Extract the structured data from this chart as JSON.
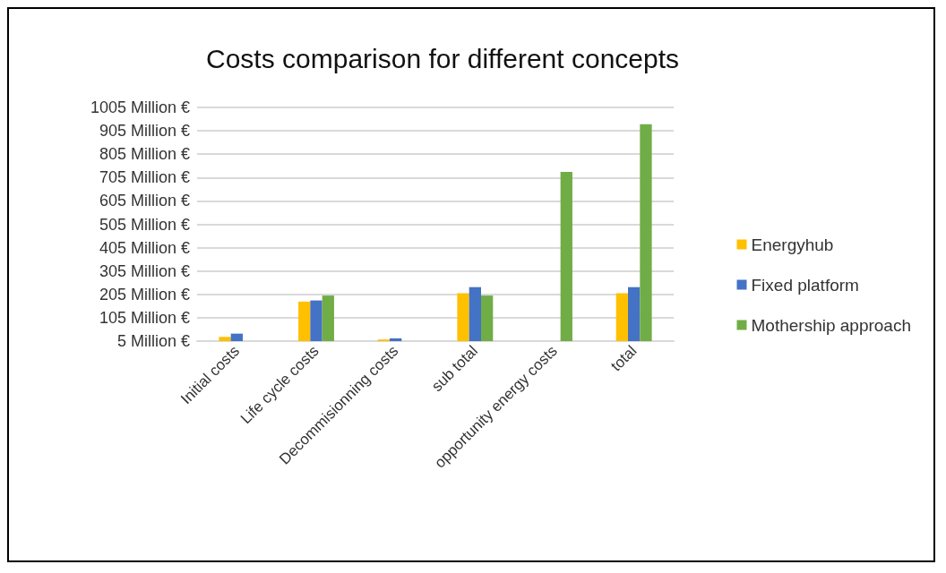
{
  "chart_data": {
    "type": "bar",
    "title": "Costs comparison for different concepts",
    "categories": [
      "Initial costs",
      "Life cycle costs",
      "Decommisionning costs",
      "sub total",
      "opportunity energy costs",
      "total"
    ],
    "series": [
      {
        "name": "Energyhub",
        "color": "#ffc000",
        "values": [
          23,
          174,
          12,
          210,
          null,
          210
        ]
      },
      {
        "name": "Fixed platform",
        "color": "#4472c4",
        "values": [
          37,
          179,
          17,
          236,
          null,
          236
        ]
      },
      {
        "name": "Mothership approach",
        "color": "#70ad47",
        "values": [
          null,
          200,
          null,
          200,
          729,
          933
        ]
      }
    ],
    "ylim": [
      5,
      1005
    ],
    "yticks": [
      {
        "value": 5,
        "label": "5 Million €"
      },
      {
        "value": 105,
        "label": "105 Million €"
      },
      {
        "value": 205,
        "label": "205 Million €"
      },
      {
        "value": 305,
        "label": "305 Million €"
      },
      {
        "value": 405,
        "label": "405 Million €"
      },
      {
        "value": 505,
        "label": "505 Million €"
      },
      {
        "value": 605,
        "label": "605 Million €"
      },
      {
        "value": 705,
        "label": "705 Million €"
      },
      {
        "value": 805,
        "label": "805 Million €"
      },
      {
        "value": 905,
        "label": "905 Million €"
      },
      {
        "value": 1005,
        "label": "1005 Million €"
      }
    ],
    "grid": "y",
    "legend": "right"
  }
}
